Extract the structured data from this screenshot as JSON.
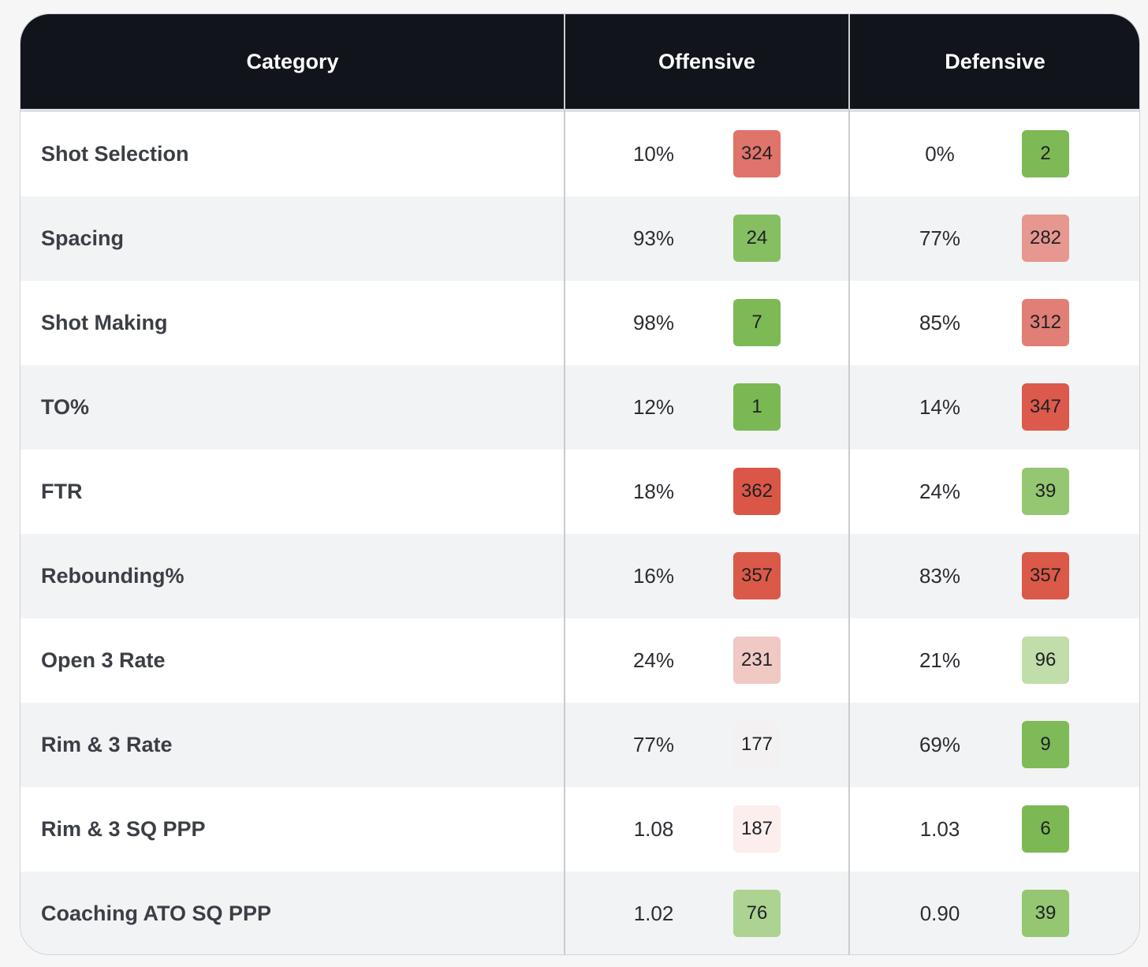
{
  "header": {
    "category": "Category",
    "offensive": "Offensive",
    "defensive": "Defensive"
  },
  "rows": [
    {
      "category": "Shot Selection",
      "off_value": "10%",
      "off_rank": "324",
      "off_color": "#e0736a",
      "def_value": "0%",
      "def_rank": "2",
      "def_color": "#7db955"
    },
    {
      "category": "Spacing",
      "off_value": "93%",
      "off_rank": "24",
      "off_color": "#86bf62",
      "def_value": "77%",
      "def_rank": "282",
      "def_color": "#e6978f"
    },
    {
      "category": "Shot Making",
      "off_value": "98%",
      "off_rank": "7",
      "off_color": "#7db955",
      "def_value": "85%",
      "def_rank": "312",
      "def_color": "#e17e75"
    },
    {
      "category": "TO%",
      "off_value": "12%",
      "off_rank": "1",
      "off_color": "#7ab853",
      "def_value": "14%",
      "def_rank": "347",
      "def_color": "#db5a4c"
    },
    {
      "category": "FTR",
      "off_value": "18%",
      "off_rank": "362",
      "off_color": "#da5747",
      "def_value": "24%",
      "def_rank": "39",
      "def_color": "#95c672"
    },
    {
      "category": "Rebounding%",
      "off_value": "16%",
      "off_rank": "357",
      "off_color": "#db5949",
      "def_value": "83%",
      "def_rank": "357",
      "def_color": "#db5949"
    },
    {
      "category": "Open 3 Rate",
      "off_value": "24%",
      "off_rank": "231",
      "off_color": "#f0c9c4",
      "def_value": "21%",
      "def_rank": "96",
      "def_color": "#c0ddaa"
    },
    {
      "category": "Rim & 3 Rate",
      "off_value": "77%",
      "off_rank": "177",
      "off_color": "#f3f1f1",
      "def_value": "69%",
      "def_rank": "9",
      "def_color": "#7eba57"
    },
    {
      "category": "Rim & 3 SQ PPP",
      "off_value": "1.08",
      "off_rank": "187",
      "off_color": "#fbeeed",
      "def_value": "1.03",
      "def_rank": "6",
      "def_color": "#7cb955"
    },
    {
      "category": "Coaching ATO SQ PPP",
      "off_value": "1.02",
      "off_rank": "76",
      "off_color": "#acd391",
      "def_value": "0.90",
      "def_rank": "39",
      "def_color": "#95c672"
    }
  ]
}
